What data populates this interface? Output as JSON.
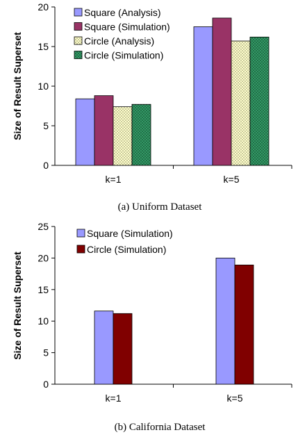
{
  "colors": {
    "square_analysis": "#9999ff",
    "square_simulation": "#993366",
    "circle_analysis": "#ffffcc",
    "circle_simulation": "#339966",
    "circle_simulation_b": "#800000"
  },
  "chart_data": [
    {
      "type": "bar",
      "caption": "(a) Uniform Dataset",
      "ylabel": "Size of Result Superset",
      "xlabel": "",
      "categories": [
        "k=1",
        "k=5"
      ],
      "ylim": [
        0,
        20
      ],
      "yticks": [
        0,
        5,
        10,
        15,
        20
      ],
      "grid": false,
      "legend_position": "top-left",
      "series": [
        {
          "name": "Square (Analysis)",
          "values": [
            8.4,
            17.5
          ],
          "color": "#9999ff",
          "pattern": "solid"
        },
        {
          "name": "Square (Simulation)",
          "values": [
            8.8,
            18.6
          ],
          "color": "#993366",
          "pattern": "solid"
        },
        {
          "name": "Circle (Analysis)",
          "values": [
            7.4,
            15.7
          ],
          "color": "#ffffcc",
          "pattern": "dots"
        },
        {
          "name": "Circle (Simulation)",
          "values": [
            7.7,
            16.2
          ],
          "color": "#339966",
          "pattern": "dots"
        }
      ]
    },
    {
      "type": "bar",
      "caption": "(b) California Dataset",
      "ylabel": "Size of Result Superset",
      "xlabel": "",
      "categories": [
        "k=1",
        "k=5"
      ],
      "ylim": [
        0,
        25
      ],
      "yticks": [
        0,
        5,
        10,
        15,
        20,
        25
      ],
      "grid": false,
      "legend_position": "top-left",
      "series": [
        {
          "name": "Square (Simulation)",
          "values": [
            11.6,
            20.0
          ],
          "color": "#9999ff",
          "pattern": "solid"
        },
        {
          "name": "Circle (Simulation)",
          "values": [
            11.2,
            18.9
          ],
          "color": "#800000",
          "pattern": "solid"
        }
      ]
    }
  ]
}
